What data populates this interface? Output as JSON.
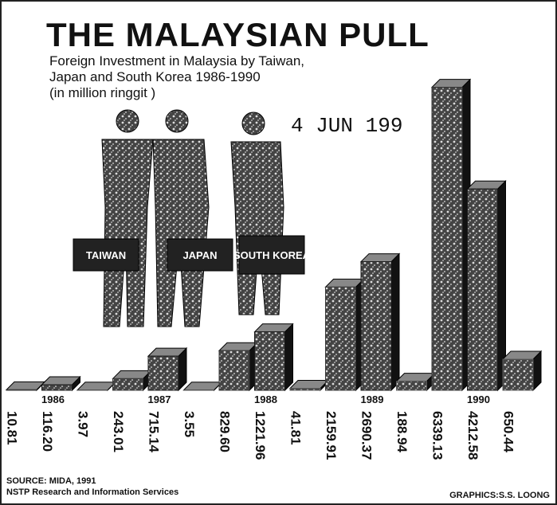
{
  "chart_data": {
    "type": "bar",
    "title": "THE MALAYSIAN PULL",
    "subtitle": [
      "Foreign Investment in Malaysia by Taiwan,",
      "Japan and South Korea 1986-1990",
      "(in million ringgit )"
    ],
    "stamp": "4 JUN 199",
    "categories": [
      "1986",
      "1987",
      "1988",
      "1989",
      "1990"
    ],
    "series": [
      {
        "name": "TAIWAN",
        "color": "#3a3a3a",
        "values": [
          10.81,
          243.01,
          829.6,
          2159.91,
          6339.13
        ],
        "value_labels": [
          "10.81",
          "243.01",
          "829.60",
          "2159.91",
          "6339.13"
        ]
      },
      {
        "name": "JAPAN",
        "color": "#1a1a1a",
        "values": [
          116.2,
          715.14,
          1221.96,
          2690.37,
          4212.58
        ],
        "value_labels": [
          "116.20",
          "715.14",
          "1221.96",
          "2690.37",
          "4212.58"
        ]
      },
      {
        "name": "SOUTH KOREA",
        "color": "#5a5a5a",
        "values": [
          3.97,
          3.55,
          41.81,
          188.94,
          650.44
        ],
        "value_labels": [
          "3.97",
          "3.55",
          "41.81",
          "188.94",
          "650.44"
        ]
      }
    ],
    "source": "SOURCE: MIDA, 1991",
    "credit": "NSTP Research and Information Services",
    "graphics": "GRAPHICS:S.S. LOONG"
  }
}
